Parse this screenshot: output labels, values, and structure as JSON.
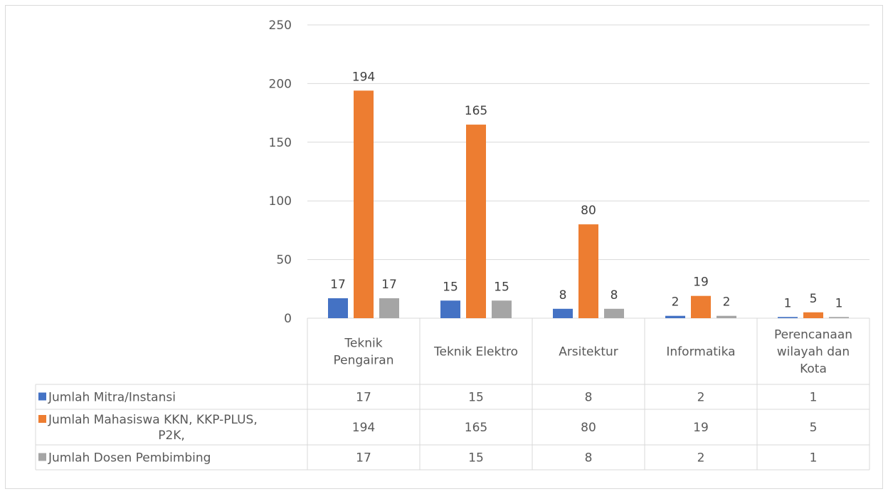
{
  "chart_data": {
    "type": "bar",
    "categories": [
      [
        "Teknik",
        "Pengairan"
      ],
      [
        "Teknik Elektro"
      ],
      [
        "Arsitektur"
      ],
      [
        "Informatika"
      ],
      [
        "Perencanaan",
        "wilayah dan",
        "Kota"
      ]
    ],
    "series": [
      {
        "name": "Jumlah Mitra/Instansi",
        "name_lines": [
          "Jumlah Mitra/Instansi"
        ],
        "color": "#4472c4",
        "values": [
          17,
          15,
          8,
          2,
          1
        ]
      },
      {
        "name": "Jumlah Mahasiswa KKN, KKP-PLUS, P2K,",
        "name_lines": [
          "Jumlah Mahasiswa KKN, KKP-PLUS,",
          "P2K,"
        ],
        "color": "#ed7d31",
        "values": [
          194,
          165,
          80,
          19,
          5
        ]
      },
      {
        "name": "Jumlah Dosen Pembimbing",
        "name_lines": [
          "Jumlah Dosen Pembimbing"
        ],
        "color": "#a5a5a5",
        "values": [
          17,
          15,
          8,
          2,
          1
        ]
      }
    ],
    "y_ticks": [
      0,
      50,
      100,
      150,
      200,
      250
    ],
    "ylim": [
      0,
      250
    ],
    "grid": true,
    "data_labels": true,
    "legend": "data-table",
    "title": "",
    "xlabel": "",
    "ylabel": ""
  }
}
